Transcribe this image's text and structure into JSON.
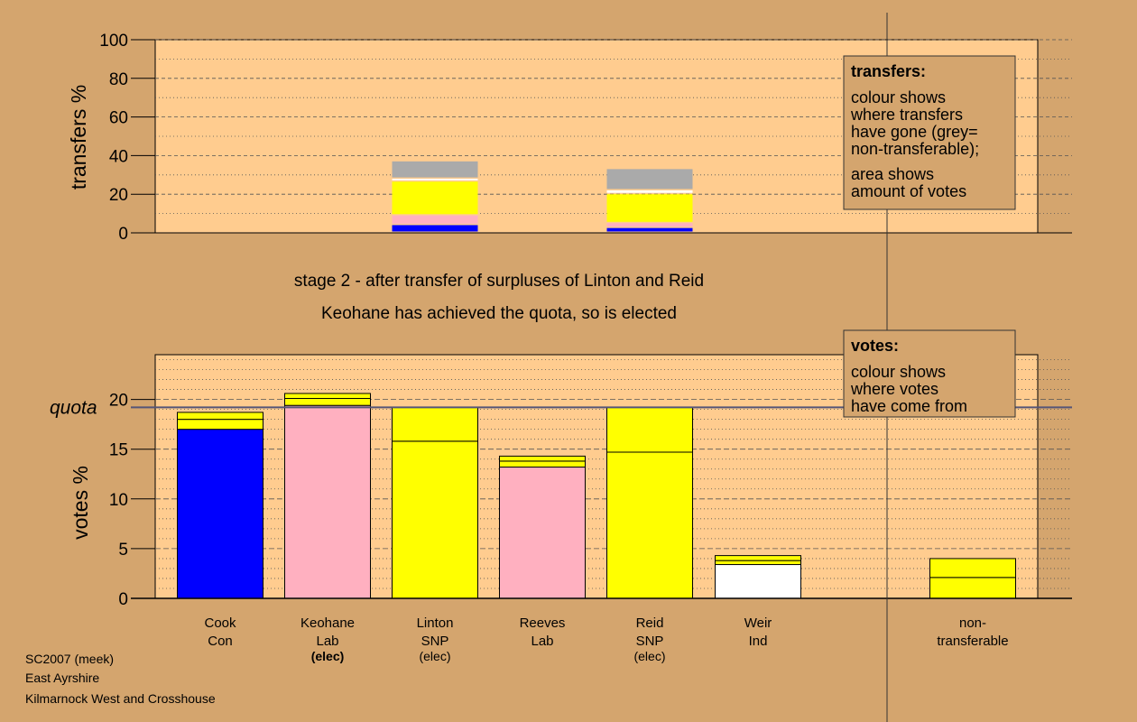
{
  "colors": {
    "background": "#d4a56e",
    "plot_bg": "#ffcc8f",
    "box_bg": "#d4a56e",
    "Con": "#0000ff",
    "Lab": "#ffb0c0",
    "SNP": "#ffff00",
    "Ind": "#ffffff",
    "nontransferable": "#aaaaaa"
  },
  "top_chart": {
    "ylabel": "transfers %",
    "ticks": [
      "0",
      "20",
      "40",
      "60",
      "80",
      "100"
    ]
  },
  "bottom_chart": {
    "ylabel": "votes %",
    "quota_label": "quota",
    "ticks": [
      "0",
      "5",
      "10",
      "15",
      "20"
    ]
  },
  "stage_text": {
    "line1": "stage 2 - after transfer of surpluses of Linton and Reid",
    "line2": "Keohane has achieved the quota, so is elected"
  },
  "transfers_box": {
    "title": "transfers:",
    "lines": [
      "colour shows",
      "where transfers",
      "have gone (grey=",
      "non-transferable);"
    ],
    "lines2": [
      "area shows",
      "amount of votes"
    ]
  },
  "votes_box": {
    "title": "votes:",
    "lines": [
      "colour shows",
      "where votes",
      "have come from"
    ]
  },
  "candidates": [
    {
      "name": "Cook",
      "party": "Con",
      "status": ""
    },
    {
      "name": "Keohane",
      "party": "Lab",
      "status": "(elec)"
    },
    {
      "name": "Linton",
      "party": "SNP",
      "status": "(elec)"
    },
    {
      "name": "Reeves",
      "party": "Lab",
      "status": ""
    },
    {
      "name": "Reid",
      "party": "SNP",
      "status": "(elec)"
    },
    {
      "name": "Weir",
      "party": "Ind",
      "status": ""
    }
  ],
  "nontransferable_label": [
    "non-",
    "transferable"
  ],
  "footer": {
    "line1": "SC2007 (meek)",
    "line2": "East Ayrshire",
    "line3": "Kilmarnock West and Crosshouse"
  },
  "chart_data": [
    {
      "type": "bar",
      "title": "transfers",
      "ylabel": "transfers %",
      "ylim": [
        0,
        100
      ],
      "categories": [
        "Cook",
        "Keohane",
        "Linton",
        "Reeves",
        "Reid",
        "Weir",
        "non-transferable"
      ],
      "stacks": [
        {
          "category": "Linton",
          "segments": [
            {
              "to": "Cook",
              "color": "#0000ff",
              "value": 4
            },
            {
              "to": "Keohane",
              "color": "#ffb0c0",
              "value": 5
            },
            {
              "to": "Reeves",
              "color": "#ffb0c0",
              "value": 0
            },
            {
              "to": "Reid",
              "color": "#ffff00",
              "value": 17.5
            },
            {
              "to": "Weir",
              "color": "#ffffff",
              "value": 1.5
            },
            {
              "to": "non-transferable",
              "color": "#aaaaaa",
              "value": 9
            }
          ]
        },
        {
          "category": "Reid",
          "segments": [
            {
              "to": "Cook",
              "color": "#0000ff",
              "value": 2.5
            },
            {
              "to": "Keohane",
              "color": "#ffb0c0",
              "value": 2.5
            },
            {
              "to": "Reeves",
              "color": "#ffb0c0",
              "value": 0
            },
            {
              "to": "Linton",
              "color": "#ffff00",
              "value": 15
            },
            {
              "to": "Weir",
              "color": "#ffffff",
              "value": 2
            },
            {
              "to": "non-transferable",
              "color": "#aaaaaa",
              "value": 11
            }
          ]
        }
      ]
    },
    {
      "type": "bar",
      "title": "votes",
      "ylabel": "votes %",
      "ylim": [
        0,
        24.5
      ],
      "quota": 19.2,
      "categories": [
        "Cook",
        "Keohane",
        "Linton",
        "Reeves",
        "Reid",
        "Weir",
        "non-transferable"
      ],
      "stacks": [
        {
          "category": "Cook",
          "segments": [
            {
              "from": "first preferences",
              "color": "#0000ff",
              "value": 17.0
            },
            {
              "from": "Linton",
              "color": "#ffff00",
              "value": 1.0
            },
            {
              "from": "Reid",
              "color": "#ffff00",
              "value": 0.7
            }
          ]
        },
        {
          "category": "Keohane",
          "segments": [
            {
              "from": "first preferences",
              "color": "#ffb0c0",
              "value": 19.4
            },
            {
              "from": "Linton",
              "color": "#ffff00",
              "value": 0.7
            },
            {
              "from": "Reid",
              "color": "#ffff00",
              "value": 0.5
            }
          ]
        },
        {
          "category": "Linton",
          "segments": [
            {
              "from": "first preferences",
              "color": "#ffff00",
              "value": 15.8
            },
            {
              "from": "Reid",
              "color": "#ffff00",
              "value": 3.4
            }
          ]
        },
        {
          "category": "Reeves",
          "segments": [
            {
              "from": "first preferences",
              "color": "#ffb0c0",
              "value": 13.2
            },
            {
              "from": "Linton",
              "color": "#ffff00",
              "value": 0.6
            },
            {
              "from": "Reid",
              "color": "#ffff00",
              "value": 0.5
            }
          ]
        },
        {
          "category": "Reid",
          "segments": [
            {
              "from": "first preferences",
              "color": "#ffff00",
              "value": 14.7
            },
            {
              "from": "Linton",
              "color": "#ffff00",
              "value": 4.5
            }
          ]
        },
        {
          "category": "Weir",
          "segments": [
            {
              "from": "first preferences",
              "color": "#ffffff",
              "value": 3.4
            },
            {
              "from": "Linton",
              "color": "#ffff00",
              "value": 0.4
            },
            {
              "from": "Reid",
              "color": "#ffff00",
              "value": 0.5
            }
          ]
        },
        {
          "category": "non-transferable",
          "segments": [
            {
              "from": "Linton",
              "color": "#ffff00",
              "value": 2.1
            },
            {
              "from": "Reid",
              "color": "#ffff00",
              "value": 1.9
            }
          ]
        }
      ]
    }
  ]
}
